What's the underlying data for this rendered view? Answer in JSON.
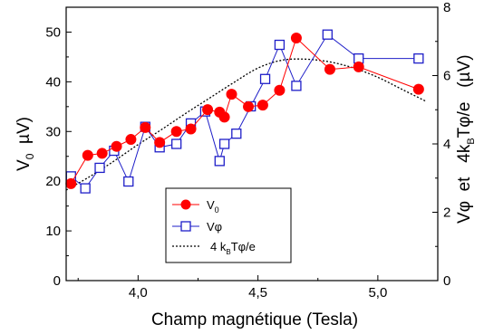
{
  "chart_data": {
    "type": "scatter",
    "title": "",
    "xlabel": "Champ magnétique (Tesla)",
    "ylabel_left": {
      "main": "V",
      "sub": "0",
      "unit": "  µV)"
    },
    "ylabel_right": {
      "part1": "Vφ  et   4k",
      "sub": "B",
      "part2": "Tφ/e   (µV)"
    },
    "xlim": [
      3.7,
      5.25
    ],
    "ylim_left": [
      0,
      55
    ],
    "ylim_right": [
      0,
      8
    ],
    "x_ticks": [
      4.0,
      4.5,
      5.0
    ],
    "x_tick_labels": [
      "4,0",
      "4,5",
      "5,0"
    ],
    "y_ticks_left": [
      0,
      10,
      20,
      30,
      40,
      50
    ],
    "y_tick_labels_left": [
      "0",
      "10",
      "20",
      "30",
      "40",
      "50"
    ],
    "y_ticks_right": [
      0,
      2,
      4,
      6,
      8
    ],
    "y_tick_labels_right": [
      "0",
      "2",
      "4",
      "6",
      "8"
    ],
    "grid": false,
    "legend_position": "bottom-center",
    "series": [
      {
        "name": "V0",
        "legend_label": "V",
        "legend_sub": "0",
        "axis": "left",
        "marker": "filled-circle",
        "color": "#ff0000",
        "x": [
          3.72,
          3.79,
          3.85,
          3.91,
          3.97,
          4.03,
          4.09,
          4.16,
          4.22,
          4.29,
          4.34,
          4.36,
          4.39,
          4.46,
          4.52,
          4.59,
          4.66,
          4.8,
          4.92,
          5.17
        ],
        "y": [
          19.5,
          25.2,
          25.6,
          27.0,
          28.4,
          30.8,
          27.8,
          30.0,
          30.5,
          34.4,
          33.9,
          32.9,
          37.5,
          35.0,
          35.3,
          38.3,
          48.8,
          42.5,
          43.0,
          38.5
        ]
      },
      {
        "name": "Vφ",
        "legend_label": "Vφ",
        "axis": "right",
        "marker": "open-square",
        "color": "#1e1ec8",
        "x": [
          3.72,
          3.78,
          3.84,
          3.9,
          3.96,
          4.03,
          4.09,
          4.16,
          4.22,
          4.28,
          4.34,
          4.36,
          4.41,
          4.47,
          4.53,
          4.59,
          4.66,
          4.79,
          4.92,
          5.17
        ],
        "y": [
          3.05,
          2.7,
          3.3,
          3.8,
          2.9,
          4.5,
          3.9,
          4.0,
          4.6,
          4.95,
          3.5,
          4.0,
          4.3,
          5.1,
          5.9,
          6.9,
          5.7,
          7.2,
          6.5,
          6.5
        ]
      },
      {
        "name": "4 kBTφ/e",
        "legend_label_part1": "4 k",
        "legend_label_sub": "B",
        "legend_label_part2": "Tφ/e",
        "axis": "right",
        "marker": "dashed-line",
        "color": "#000000",
        "x": [
          3.7,
          3.8,
          3.9,
          4.0,
          4.1,
          4.2,
          4.3,
          4.4,
          4.5,
          4.6,
          4.7,
          4.8,
          4.9,
          5.0,
          5.1,
          5.2
        ],
        "y": [
          2.65,
          3.05,
          3.5,
          3.98,
          4.43,
          4.9,
          5.35,
          5.8,
          6.22,
          6.45,
          6.48,
          6.4,
          6.22,
          5.95,
          5.6,
          5.25
        ]
      }
    ]
  }
}
